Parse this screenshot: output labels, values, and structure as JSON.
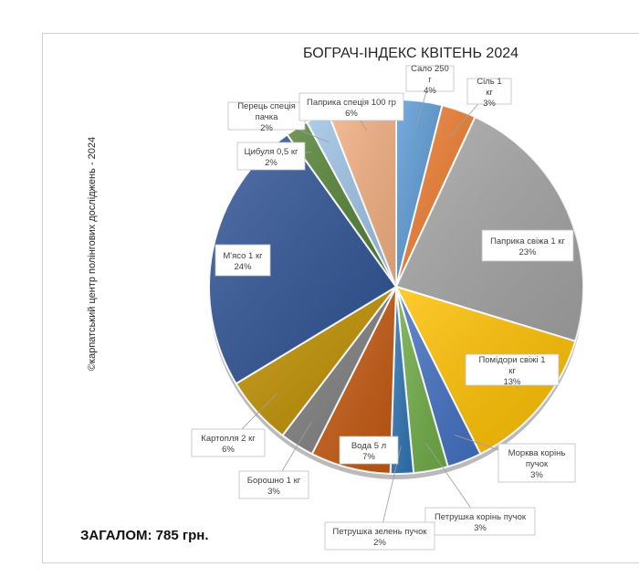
{
  "chart_data": {
    "type": "pie",
    "title": "БОГРАЧ-ІНДЕКС КВІТЕНЬ 2024",
    "side_caption": "©карпатський центр полінгових досліджень - 2024",
    "total_label": "ЗАГАЛОМ: 785 грн.",
    "slices": [
      {
        "label": "Сало 250 г",
        "value": 4,
        "value_label": "4%",
        "color": "#5b9bd5"
      },
      {
        "label": "Сіль 1 кг",
        "value": 3,
        "value_label": "3%",
        "color": "#ed7d31"
      },
      {
        "label": "Паприка свіжа 1 кг",
        "value": 23,
        "value_label": "23%",
        "color": "#a5a5a5"
      },
      {
        "label": "Помідори свіжі 1 кг",
        "value": 13,
        "value_label": "13%",
        "color": "#ffc000"
      },
      {
        "label": "Морква корінь пучок",
        "value": 3,
        "value_label": "3%",
        "color": "#4472c4"
      },
      {
        "label": "Петрушка корінь пучок",
        "value": 3,
        "value_label": "3%",
        "color": "#70ad47"
      },
      {
        "label": "Петрушка зелень пучок",
        "value": 2,
        "value_label": "2%",
        "color": "#2f75b5"
      },
      {
        "label": "Вода 5 л",
        "value": 7,
        "value_label": "7%",
        "color": "#c55a11"
      },
      {
        "label": "Борошно 1 кг",
        "value": 3,
        "value_label": "3%",
        "color": "#7f7f7f"
      },
      {
        "label": "Картопля 2 кг",
        "value": 6,
        "value_label": "6%",
        "color": "#bf9000"
      },
      {
        "label": "М'ясо 1 кг",
        "value": 24,
        "value_label": "24%",
        "color": "#305496"
      },
      {
        "label": "Цибуля 0,5 кг",
        "value": 2,
        "value_label": "2%",
        "color": "#548235"
      },
      {
        "label": "Перець спеція пачка",
        "value": 2,
        "value_label": "2%",
        "color": "#9dc3e6"
      },
      {
        "label": "Паприка спеція 100 гр",
        "value": 6,
        "value_label": "6%",
        "color": "#f4b183"
      }
    ]
  }
}
